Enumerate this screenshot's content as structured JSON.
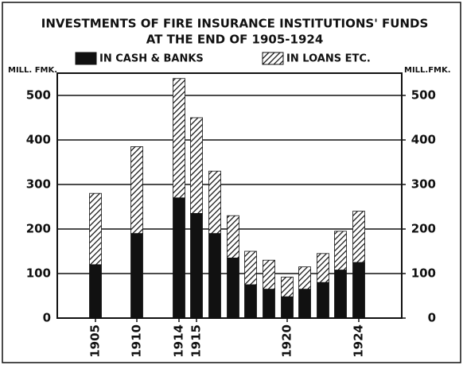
{
  "chart_data": {
    "type": "stacked_bar",
    "title": [
      "INVESTMENTS OF FIRE INSURANCE INSTITUTIONS' FUNDS",
      "AT THE END OF 1905-1924"
    ],
    "y_label": "MILL. FMK.",
    "y2_label": "MILL.FMK.",
    "categories": [
      "1905",
      "1910",
      "1914",
      "1915",
      null,
      null,
      null,
      null,
      "1920",
      null,
      null,
      null,
      "1924"
    ],
    "series": [
      {
        "name": "IN CASH & BANKS",
        "color": "#111111",
        "hatch": false,
        "values": [
          120,
          190,
          270,
          235,
          190,
          135,
          75,
          65,
          48,
          65,
          80,
          108,
          125
        ]
      },
      {
        "name": "IN LOANS ETC.",
        "color": "#111111",
        "hatch": true,
        "values": [
          160,
          195,
          268,
          215,
          140,
          95,
          75,
          65,
          44,
          50,
          65,
          87,
          115
        ]
      }
    ],
    "ylim": [
      0,
      550
    ],
    "yticks": [
      0,
      100,
      200,
      300,
      400,
      500
    ],
    "y2lim": [
      0,
      550
    ],
    "y2ticks": [
      0,
      100,
      200,
      300,
      400,
      500
    ],
    "grid": true
  }
}
